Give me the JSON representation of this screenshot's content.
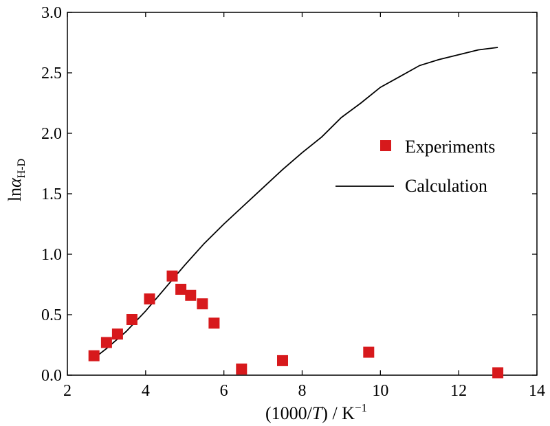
{
  "chart_data": {
    "type": "scatter",
    "xlabel_parts": [
      "(1000/",
      "T",
      ") / K",
      "−1"
    ],
    "ylabel_parts": [
      "ln",
      "α",
      "H-D"
    ],
    "xlim": [
      2,
      14
    ],
    "ylim": [
      0.0,
      3.0
    ],
    "xticks": [
      2,
      4,
      6,
      8,
      10,
      12,
      14
    ],
    "xtick_labels": [
      "2",
      "4",
      "6",
      "8",
      "10",
      "12",
      "14"
    ],
    "yticks": [
      0.0,
      0.5,
      1.0,
      1.5,
      2.0,
      2.5,
      3.0
    ],
    "ytick_labels": [
      "0.0",
      "0.5",
      "1.0",
      "1.5",
      "2.0",
      "2.5",
      "3.0"
    ],
    "legend_position": "center-right",
    "series": [
      {
        "name": "Experiments",
        "kind": "marker",
        "color": "#d7191c",
        "x": [
          2.68,
          3.0,
          3.28,
          3.65,
          4.1,
          4.68,
          4.9,
          5.15,
          5.45,
          5.75,
          6.45,
          7.5,
          9.7,
          13.0
        ],
        "y": [
          0.16,
          0.27,
          0.34,
          0.46,
          0.63,
          0.82,
          0.71,
          0.66,
          0.59,
          0.43,
          0.05,
          0.12,
          0.19,
          0.02
        ]
      },
      {
        "name": "Calculation",
        "kind": "line",
        "color": "#000000",
        "x": [
          2.68,
          3.0,
          3.5,
          4.0,
          4.5,
          5.0,
          5.5,
          6.0,
          6.5,
          7.0,
          7.5,
          8.0,
          8.5,
          9.0,
          9.5,
          10.0,
          10.5,
          11.0,
          11.5,
          12.0,
          12.5,
          13.0
        ],
        "y": [
          0.14,
          0.22,
          0.36,
          0.53,
          0.72,
          0.91,
          1.09,
          1.25,
          1.4,
          1.55,
          1.7,
          1.84,
          1.97,
          2.13,
          2.25,
          2.38,
          2.47,
          2.56,
          2.61,
          2.65,
          2.69,
          2.71
        ]
      }
    ]
  }
}
